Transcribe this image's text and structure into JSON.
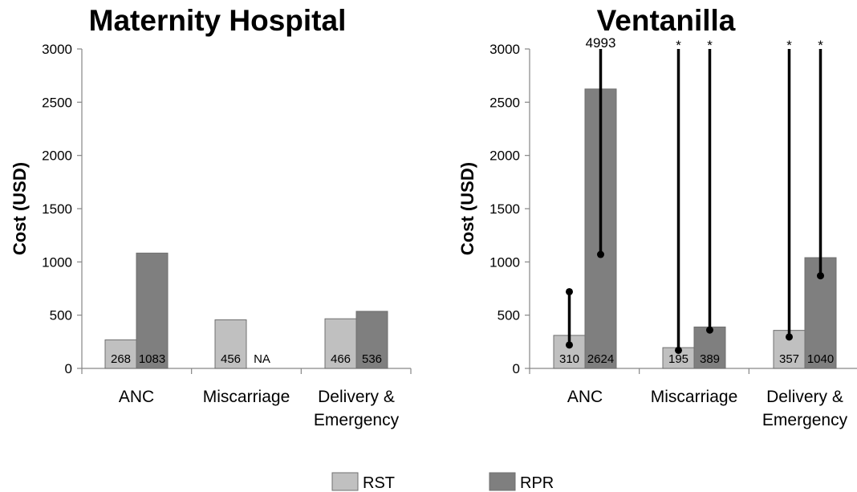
{
  "chart_data": [
    {
      "type": "bar",
      "title": "Maternity Hospital",
      "ylabel": "Cost (USD)",
      "ylim": [
        0,
        3000
      ],
      "yticks": [
        "0",
        "500",
        "1000",
        "1500",
        "2000",
        "2500",
        "3000"
      ],
      "categories": [
        [
          "ANC"
        ],
        [
          "Miscarriage"
        ],
        [
          "Delivery &",
          "Emergency"
        ]
      ],
      "series": [
        {
          "name": "RST",
          "values": [
            268,
            456,
            466
          ],
          "labels": [
            "268",
            "456",
            "466"
          ]
        },
        {
          "name": "RPR",
          "values": [
            1083,
            null,
            536
          ],
          "labels": [
            "1083",
            "NA",
            "536"
          ]
        }
      ],
      "error_bars": [],
      "annotations": []
    },
    {
      "type": "bar",
      "title": "Ventanilla",
      "ylabel": "Cost (USD)",
      "ylim": [
        0,
        3000
      ],
      "yticks": [
        "0",
        "500",
        "1000",
        "1500",
        "2000",
        "2500",
        "3000"
      ],
      "categories": [
        [
          "ANC"
        ],
        [
          "Miscarriage"
        ],
        [
          "Delivery &",
          "Emergency"
        ]
      ],
      "series": [
        {
          "name": "RST",
          "values": [
            310,
            195,
            357
          ],
          "labels": [
            "310",
            "195",
            "357"
          ]
        },
        {
          "name": "RPR",
          "values": [
            2624,
            389,
            1040
          ],
          "labels": [
            "2624",
            "389",
            "1040"
          ]
        }
      ],
      "error_bars": [
        {
          "series": 0,
          "category": 0,
          "low": 220,
          "high": 720,
          "capped": false
        },
        {
          "series": 1,
          "category": 0,
          "low": 1070,
          "high": 4993,
          "capped": true
        },
        {
          "series": 0,
          "category": 1,
          "low": 170,
          "high": 3000,
          "capped": true
        },
        {
          "series": 1,
          "category": 1,
          "low": 360,
          "high": 3000,
          "capped": true
        },
        {
          "series": 0,
          "category": 2,
          "low": 295,
          "high": 3000,
          "capped": true
        },
        {
          "series": 1,
          "category": 2,
          "low": 870,
          "high": 3000,
          "capped": true
        }
      ],
      "annotations": [
        "4993",
        "*",
        "*",
        "*",
        "*"
      ]
    }
  ],
  "legend": {
    "placement": "bottom-center",
    "items": [
      {
        "label": "RST",
        "color": "#c0c0c0"
      },
      {
        "label": "RPR",
        "color": "#7f7f7f"
      }
    ]
  },
  "colors": {
    "RST": "#c0c0c0",
    "RPR": "#7f7f7f",
    "axis": "#868686",
    "error_bar": "#000000"
  }
}
